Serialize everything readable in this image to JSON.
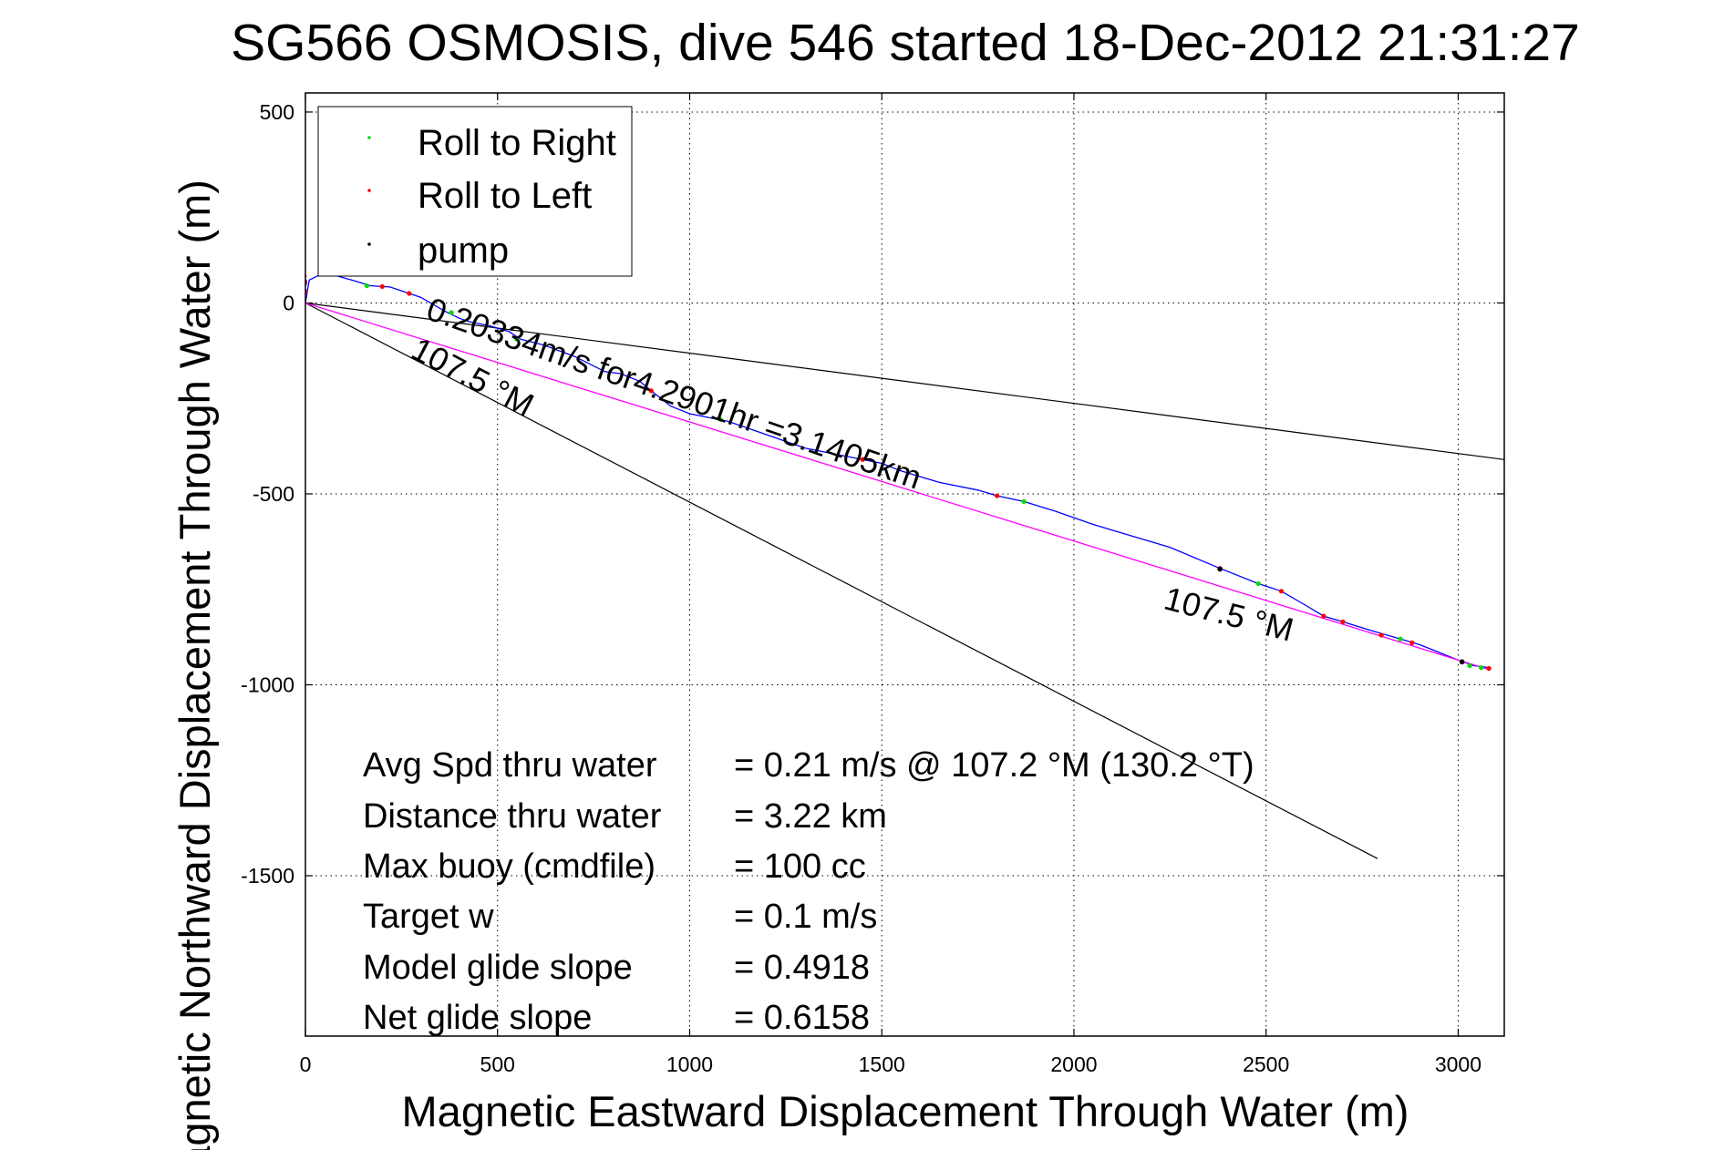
{
  "chart_data": {
    "type": "line",
    "title": "SG566 OSMOSIS, dive 546 started 18-Dec-2012 21:31:27",
    "xlabel": "Magnetic Eastward Displacement Through Water (m)",
    "ylabel": "Magnetic Northward Displacement Through Water (m)",
    "xlim": [
      0,
      3120
    ],
    "ylim": [
      -1920,
      550
    ],
    "xticks": [
      0,
      500,
      1000,
      1500,
      2000,
      2500,
      3000
    ],
    "yticks": [
      500,
      0,
      -500,
      -1000,
      -1500
    ],
    "grid": true,
    "legend_position": "top-left",
    "legend": [
      {
        "label": "Roll to Right",
        "color": "#00dd00"
      },
      {
        "label": "Roll to Left",
        "color": "#ff0000"
      },
      {
        "label": "pump",
        "color": "#000000"
      }
    ],
    "series": [
      {
        "name": "track",
        "color": "#0000ff",
        "points": [
          [
            0,
            0
          ],
          [
            10,
            60
          ],
          [
            50,
            80
          ],
          [
            120,
            60
          ],
          [
            170,
            45
          ],
          [
            200,
            43
          ],
          [
            220,
            42
          ],
          [
            270,
            25
          ],
          [
            300,
            15
          ],
          [
            360,
            -20
          ],
          [
            400,
            -40
          ],
          [
            430,
            -50
          ],
          [
            480,
            -60
          ],
          [
            530,
            -75
          ],
          [
            560,
            -95
          ],
          [
            620,
            -110
          ],
          [
            700,
            -140
          ],
          [
            780,
            -180
          ],
          [
            820,
            -185
          ],
          [
            870,
            -205
          ],
          [
            900,
            -230
          ],
          [
            950,
            -270
          ],
          [
            1000,
            -290
          ],
          [
            1050,
            -300
          ],
          [
            1100,
            -310
          ],
          [
            1200,
            -345
          ],
          [
            1300,
            -380
          ],
          [
            1400,
            -400
          ],
          [
            1500,
            -420
          ],
          [
            1550,
            -440
          ],
          [
            1650,
            -470
          ],
          [
            1750,
            -490
          ],
          [
            1800,
            -505
          ],
          [
            1870,
            -520
          ],
          [
            1950,
            -545
          ],
          [
            2050,
            -580
          ],
          [
            2150,
            -610
          ],
          [
            2250,
            -640
          ],
          [
            2380,
            -695
          ],
          [
            2480,
            -735
          ],
          [
            2540,
            -755
          ],
          [
            2600,
            -790
          ],
          [
            2650,
            -820
          ],
          [
            2700,
            -835
          ],
          [
            2780,
            -860
          ],
          [
            2850,
            -880
          ],
          [
            2900,
            -895
          ],
          [
            2950,
            -915
          ],
          [
            3000,
            -935
          ],
          [
            3040,
            -950
          ],
          [
            3080,
            -955
          ]
        ]
      },
      {
        "name": "heading-line",
        "color": "#ff00ff",
        "points": [
          [
            0,
            0
          ],
          [
            3080,
            -960
          ]
        ]
      }
    ],
    "reference_lines": [
      {
        "color": "#000000",
        "points": [
          [
            0,
            0
          ],
          [
            3120,
            -410
          ]
        ]
      },
      {
        "color": "#000000",
        "points": [
          [
            0,
            0
          ],
          [
            2790,
            -1455
          ]
        ]
      }
    ],
    "markers": {
      "roll_right": [
        [
          160,
          45
        ],
        [
          380,
          -25
        ],
        [
          550,
          -95
        ],
        [
          1080,
          -305
        ],
        [
          1870,
          -520
        ],
        [
          2480,
          -735
        ],
        [
          2850,
          -880
        ],
        [
          3030,
          -950
        ],
        [
          3060,
          -955
        ]
      ],
      "roll_left": [
        [
          200,
          43
        ],
        [
          270,
          25
        ],
        [
          900,
          -230
        ],
        [
          1450,
          -410
        ],
        [
          1800,
          -505
        ],
        [
          2380,
          -695
        ],
        [
          2540,
          -755
        ],
        [
          2650,
          -820
        ],
        [
          2700,
          -835
        ],
        [
          2800,
          -870
        ],
        [
          2880,
          -890
        ],
        [
          3080,
          -957
        ]
      ],
      "pump": [
        [
          2380,
          -697
        ],
        [
          3010,
          -940
        ]
      ],
      "surface_cluster": [
        [
          -5,
          10
        ],
        [
          -3,
          25
        ],
        [
          -6,
          40
        ],
        [
          -2,
          55
        ],
        [
          -4,
          70
        ],
        [
          -6,
          85
        ],
        [
          -1,
          30
        ],
        [
          -3,
          50
        ]
      ]
    },
    "annotations": [
      {
        "text": "0.20334m/s for4.2901hr =3.1405km",
        "x": 310,
        "y": -40,
        "angle": 19.2
      },
      {
        "text": "107.5 °M",
        "x": 270,
        "y": -140,
        "angle": 27.5
      },
      {
        "text": "107.5 °M",
        "x": 2230,
        "y": -800,
        "angle": 14.5
      }
    ],
    "stats": [
      {
        "label": "Avg Spd thru water",
        "value": "=  0.21 m/s @ 107.2 °M (130.2 °T)"
      },
      {
        "label": "Distance thru water",
        "value": "=  3.22 km"
      },
      {
        "label": "Max buoy (cmdfile)",
        "value": "= 100 cc"
      },
      {
        "label": "Target w",
        "value": "= 0.1 m/s"
      },
      {
        "label": "Model glide slope",
        "value": "= 0.4918"
      },
      {
        "label": "Net glide slope",
        "value": "= 0.6158"
      }
    ]
  }
}
